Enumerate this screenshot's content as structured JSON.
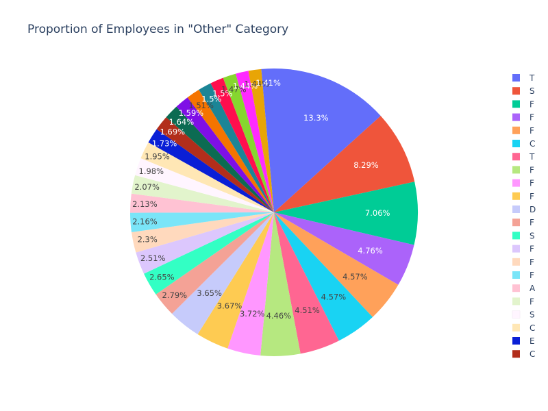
{
  "chart_data": {
    "type": "pie",
    "title": "Proportion of Employees in \"Other\" Category",
    "slices": [
      {
        "label": "T",
        "percent": 13.3,
        "text": "13.3%",
        "color": "#636efa"
      },
      {
        "label": "S",
        "percent": 8.29,
        "text": "8.29%",
        "color": "#EF553B"
      },
      {
        "label": "F",
        "percent": 7.06,
        "text": "7.06%",
        "color": "#00cc96"
      },
      {
        "label": "F",
        "percent": 4.76,
        "text": "4.76%",
        "color": "#ab63fa"
      },
      {
        "label": "F",
        "percent": 4.57,
        "text": "4.57%",
        "color": "#FFA15A"
      },
      {
        "label": "C",
        "percent": 4.57,
        "text": "4.57%",
        "color": "#19d3f3"
      },
      {
        "label": "T",
        "percent": 4.51,
        "text": "4.51%",
        "color": "#FF6692"
      },
      {
        "label": "F",
        "percent": 4.46,
        "text": "4.46%",
        "color": "#B6E880"
      },
      {
        "label": "F",
        "percent": 3.72,
        "text": "3.72%",
        "color": "#FF97FF"
      },
      {
        "label": "F",
        "percent": 3.67,
        "text": "3.67%",
        "color": "#FECB52"
      },
      {
        "label": "D",
        "percent": 3.65,
        "text": "3.65%",
        "color": "#c6cbfb"
      },
      {
        "label": "F",
        "percent": 2.79,
        "text": "2.79%",
        "color": "#f4a296"
      },
      {
        "label": "S",
        "percent": 2.65,
        "text": "2.65%",
        "color": "#33ffc4"
      },
      {
        "label": "F",
        "percent": 2.51,
        "text": "2.51%",
        "color": "#dcc7fd"
      },
      {
        "label": "F",
        "percent": 2.3,
        "text": "2.3%",
        "color": "#ffd9bd"
      },
      {
        "label": "F",
        "percent": 2.16,
        "text": "2.16%",
        "color": "#7ae5f8"
      },
      {
        "label": "A",
        "percent": 2.13,
        "text": "2.13%",
        "color": "#ffc2d3"
      },
      {
        "label": "F",
        "percent": 2.07,
        "text": "2.07%",
        "color": "#e2f4cc"
      },
      {
        "label": "S",
        "percent": 1.98,
        "text": "1.98%",
        "color": "#fff5ff"
      },
      {
        "label": "C",
        "percent": 1.95,
        "text": "1.95%",
        "color": "#ffe7b5"
      },
      {
        "label": "E",
        "percent": 1.73,
        "text": "1.73%",
        "color": "#0a1fd6"
      },
      {
        "label": "C",
        "percent": 1.69,
        "text": "1.69%",
        "color": "#b22e1b"
      },
      {
        "label": "",
        "percent": 1.64,
        "text": "1.64%",
        "color": "#0c6b52"
      },
      {
        "label": "",
        "percent": 1.59,
        "text": "1.59%",
        "color": "#7f0fe6"
      },
      {
        "label": "",
        "percent": 1.51,
        "text": "1.51%",
        "color": "#f57400"
      },
      {
        "label": "",
        "percent": 1.5,
        "text": "1.5%",
        "color": "#1c8596"
      },
      {
        "label": "",
        "percent": 1.5,
        "text": "1.5%",
        "color": "#ff0e4e"
      },
      {
        "label": "",
        "percent": 1.47,
        "text": "1.47%",
        "color": "#86d62f"
      },
      {
        "label": "",
        "percent": 1.44,
        "text": "1.44%",
        "color": "#ff2bff"
      },
      {
        "label": "",
        "percent": 1.44,
        "text": "1.44%",
        "color": "#e8a506"
      },
      {
        "label": "",
        "percent": 1.41,
        "text": "1.41%",
        "color": "#636efa"
      }
    ],
    "legend_placement": "right",
    "legend_visible_count": 22
  }
}
